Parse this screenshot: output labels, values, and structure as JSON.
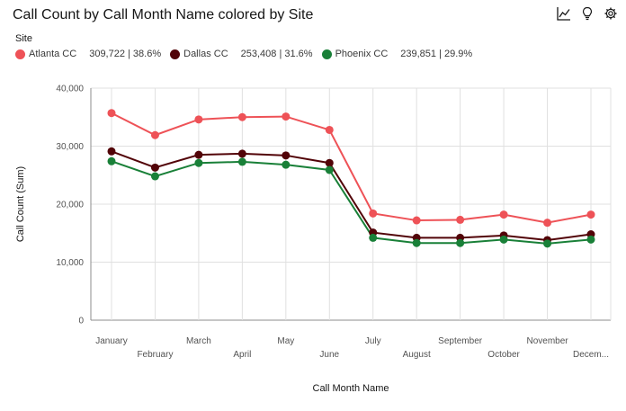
{
  "header": {
    "title": "Call Count by Call Month Name colored by Site"
  },
  "toolbar": {
    "icons": [
      "line-chart-icon",
      "lightbulb-icon",
      "settings-icon"
    ]
  },
  "legend": {
    "title": "Site",
    "items": [
      {
        "name": "Atlanta CC",
        "stat": "309,722 | 38.6%",
        "color": "#ee5257"
      },
      {
        "name": "Dallas CC",
        "stat": "253,408 | 31.6%",
        "color": "#520408"
      },
      {
        "name": "Phoenix CC",
        "stat": "239,851 | 29.9%",
        "color": "#198038"
      }
    ]
  },
  "chart_data": {
    "type": "line",
    "xlabel": "Call Month Name",
    "ylabel": "Call Count (Sum)",
    "categories": [
      "January",
      "February",
      "March",
      "April",
      "May",
      "June",
      "July",
      "August",
      "September",
      "October",
      "November",
      "Decem..."
    ],
    "ylim": [
      0,
      40000
    ],
    "yticks": [
      {
        "value": 0,
        "label": "0"
      },
      {
        "value": 10000,
        "label": "10,000"
      },
      {
        "value": 20000,
        "label": "20,000"
      },
      {
        "value": 30000,
        "label": "30,000"
      },
      {
        "value": 40000,
        "label": "40,000"
      }
    ],
    "grid": true,
    "series": [
      {
        "name": "Atlanta CC",
        "color": "#ee5257",
        "values": [
          35700,
          31900,
          34600,
          35000,
          35100,
          32800,
          18400,
          17200,
          17300,
          18200,
          16800,
          18200
        ]
      },
      {
        "name": "Dallas CC",
        "color": "#520408",
        "values": [
          29100,
          26300,
          28500,
          28700,
          28400,
          27100,
          15100,
          14200,
          14200,
          14600,
          13800,
          14800
        ]
      },
      {
        "name": "Phoenix CC",
        "color": "#198038",
        "values": [
          27400,
          24800,
          27100,
          27300,
          26800,
          25900,
          14200,
          13300,
          13300,
          13900,
          13200,
          13900
        ]
      }
    ]
  }
}
